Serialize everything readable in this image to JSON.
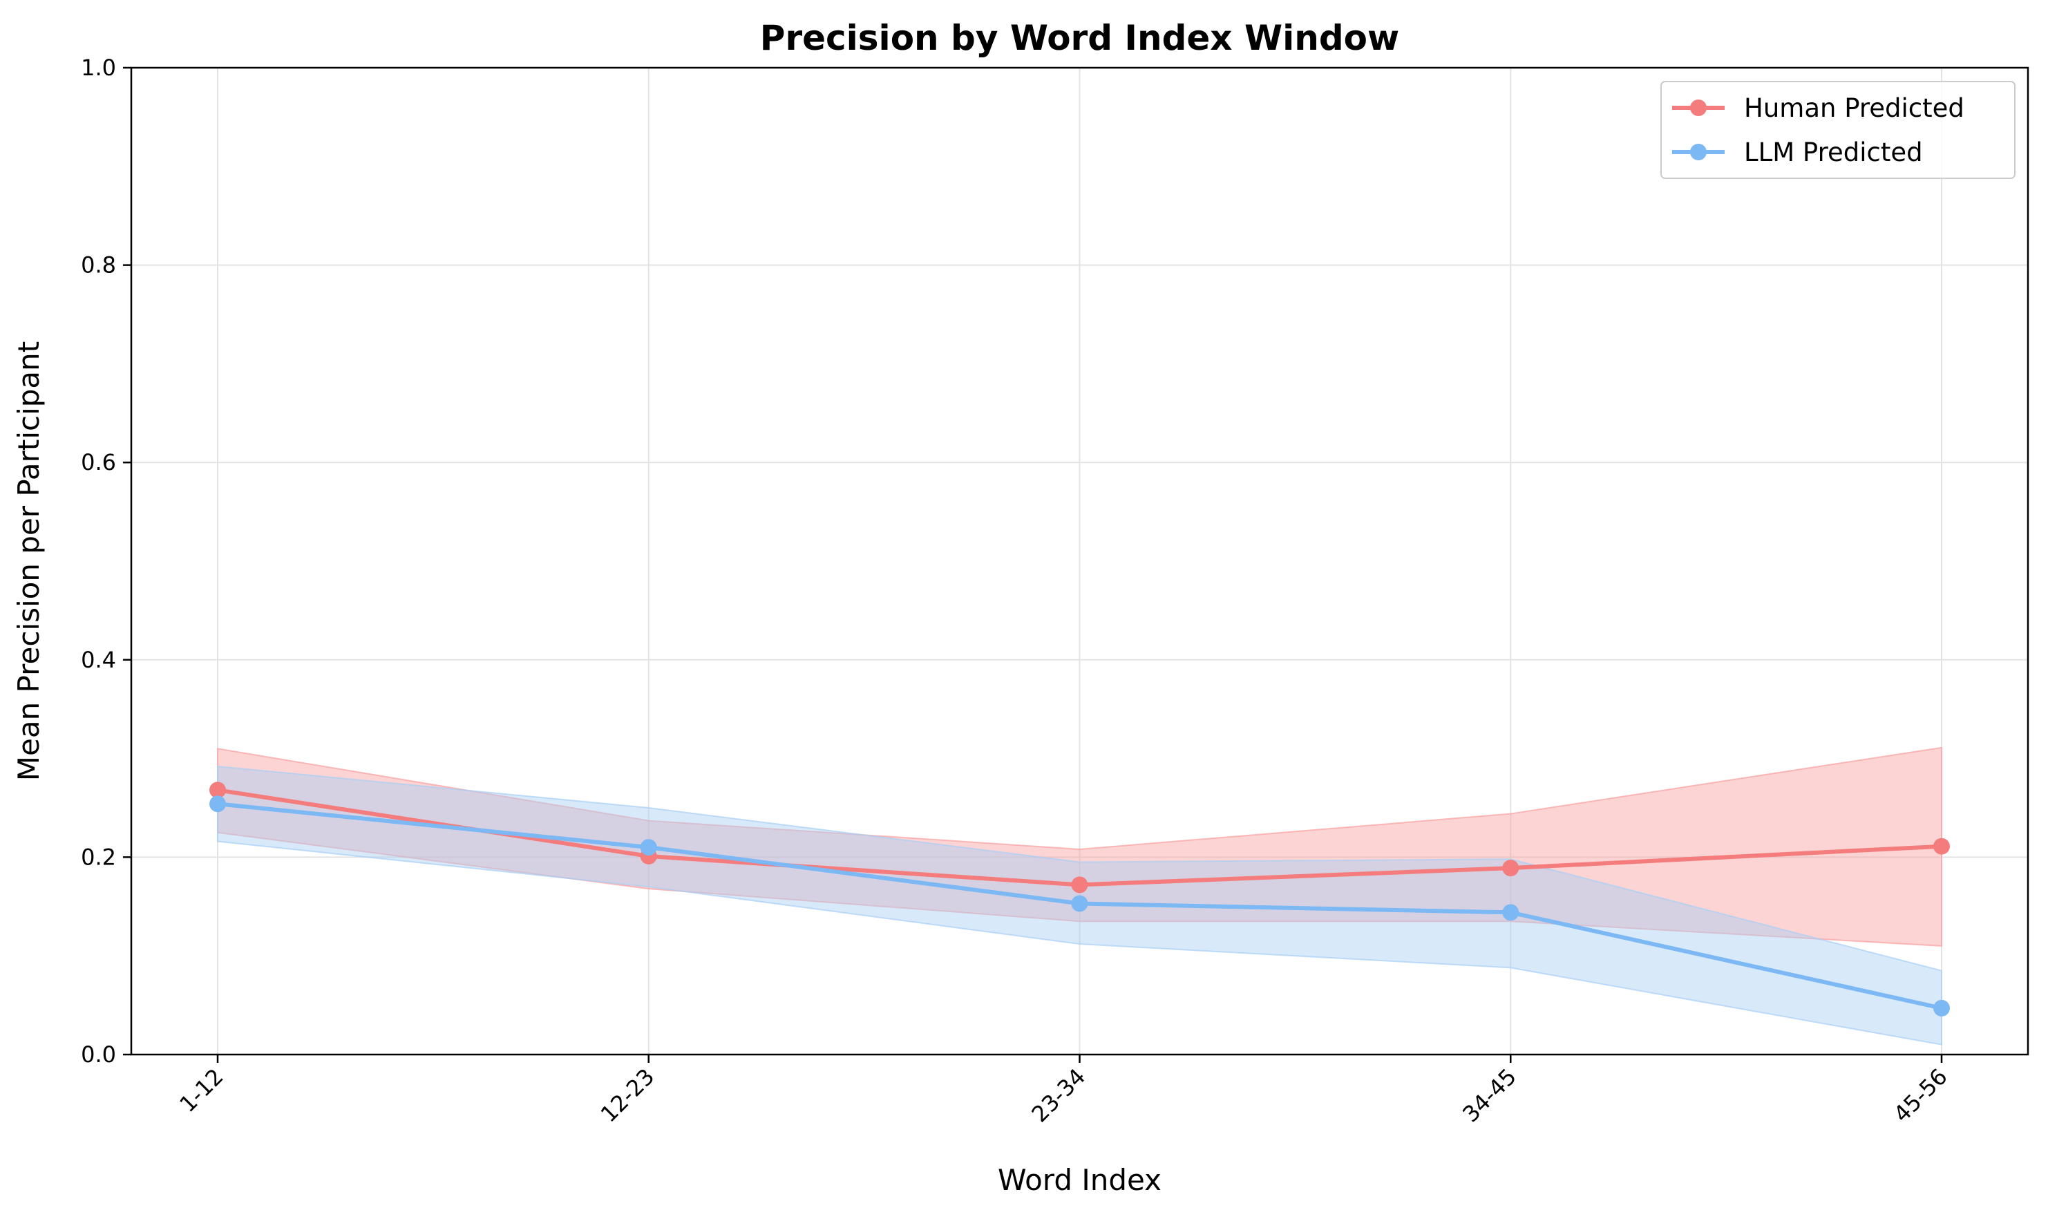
{
  "chart_data": {
    "type": "line",
    "title": "Precision by Word Index Window",
    "xlabel": "Word Index",
    "ylabel": "Mean Precision per Participant",
    "categories": [
      "1-12",
      "12-23",
      "23-34",
      "34-45",
      "45-56"
    ],
    "ylim": [
      0,
      1.0
    ],
    "yticks": [
      "0.0",
      "0.2",
      "0.4",
      "0.6",
      "0.8",
      "1.0"
    ],
    "grid": true,
    "legend_position": "top-right",
    "series": [
      {
        "name": "Human Predicted",
        "color": "#f47c7c",
        "band_color": "#f9a0a0",
        "values": [
          0.268,
          0.201,
          0.172,
          0.189,
          0.211
        ],
        "lower": [
          0.225,
          0.168,
          0.135,
          0.135,
          0.11
        ],
        "upper": [
          0.31,
          0.237,
          0.208,
          0.244,
          0.311
        ]
      },
      {
        "name": "LLM Predicted",
        "color": "#7cb9f4",
        "band_color": "#a8cff5",
        "values": [
          0.254,
          0.21,
          0.153,
          0.144,
          0.047
        ],
        "lower": [
          0.216,
          0.17,
          0.112,
          0.088,
          0.01
        ],
        "upper": [
          0.292,
          0.25,
          0.195,
          0.198,
          0.085
        ]
      }
    ]
  }
}
